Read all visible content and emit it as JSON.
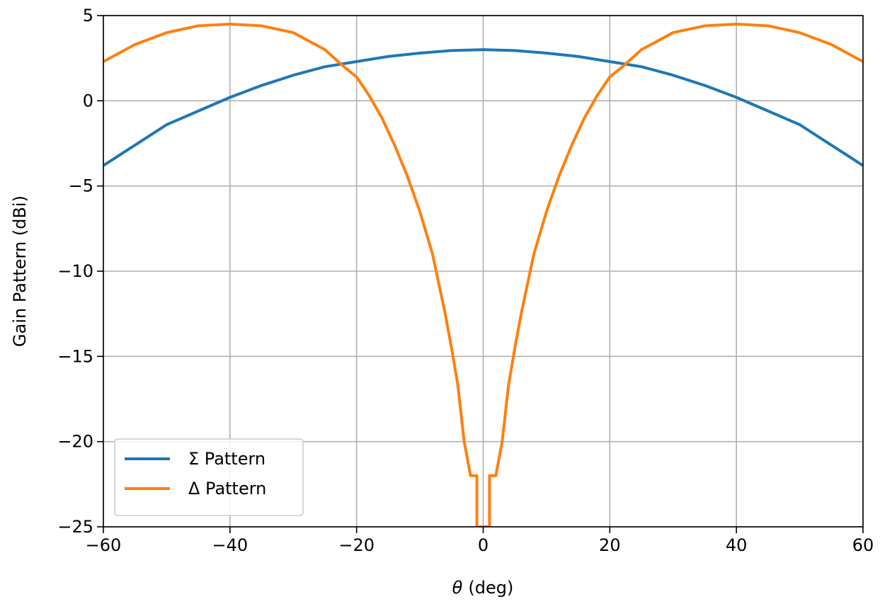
{
  "chart_data": {
    "type": "line",
    "title": "",
    "xlabel": "(deg)",
    "xlabel_symbol": "θ",
    "ylabel": "Gain Pattern (dBi)",
    "xlim": [
      -60,
      60
    ],
    "ylim": [
      -25,
      5
    ],
    "x_ticks": [
      -60,
      -40,
      -20,
      0,
      20,
      40,
      60
    ],
    "y_ticks": [
      5,
      0,
      -5,
      -10,
      -15,
      -20,
      -25
    ],
    "x_tick_labels": [
      "−60",
      "−40",
      "−20",
      "0",
      "20",
      "40",
      "60"
    ],
    "y_tick_labels": [
      "5",
      "0",
      "−5",
      "−10",
      "−15",
      "−20",
      "−25"
    ],
    "grid": true,
    "legend_position": "lower-left",
    "series": [
      {
        "name": "Σ Pattern",
        "color": "#1f77b4",
        "x": [
          -60,
          -55,
          -50,
          -45,
          -40,
          -35,
          -30,
          -25,
          -20,
          -15,
          -10,
          -5,
          0,
          5,
          10,
          15,
          20,
          25,
          30,
          35,
          40,
          45,
          50,
          55,
          60
        ],
        "y": [
          -3.8,
          -2.6,
          -1.4,
          -0.6,
          0.2,
          0.9,
          1.5,
          2.0,
          2.3,
          2.6,
          2.8,
          2.95,
          3.0,
          2.95,
          2.8,
          2.6,
          2.3,
          2.0,
          1.5,
          0.9,
          0.2,
          -0.6,
          -1.4,
          -2.6,
          -3.8
        ]
      },
      {
        "name": "Δ Pattern",
        "color": "#ff7f0e",
        "x": [
          -60,
          -55,
          -50,
          -45,
          -40,
          -35,
          -30,
          -25,
          -22,
          -20,
          -18,
          -16,
          -14,
          -12,
          -10,
          -8,
          -6,
          -5,
          -4,
          -3,
          -2,
          -1,
          -1,
          1,
          1,
          2,
          3,
          4,
          5,
          6,
          8,
          10,
          12,
          14,
          16,
          18,
          20,
          22,
          25,
          30,
          35,
          40,
          45,
          50,
          55,
          60
        ],
        "y": [
          2.3,
          3.3,
          4.0,
          4.4,
          4.5,
          4.4,
          4.0,
          3.0,
          2.0,
          1.4,
          0.3,
          -1.0,
          -2.6,
          -4.4,
          -6.5,
          -9.0,
          -12.5,
          -14.5,
          -16.7,
          -20.0,
          -22.0,
          -22.0,
          -25,
          -25,
          -22.0,
          -22.0,
          -20.0,
          -16.7,
          -14.5,
          -12.5,
          -9.0,
          -6.5,
          -4.4,
          -2.6,
          -1.0,
          0.3,
          1.4,
          2.0,
          3.0,
          4.0,
          4.4,
          4.5,
          4.4,
          4.0,
          3.3,
          2.3
        ]
      }
    ]
  }
}
